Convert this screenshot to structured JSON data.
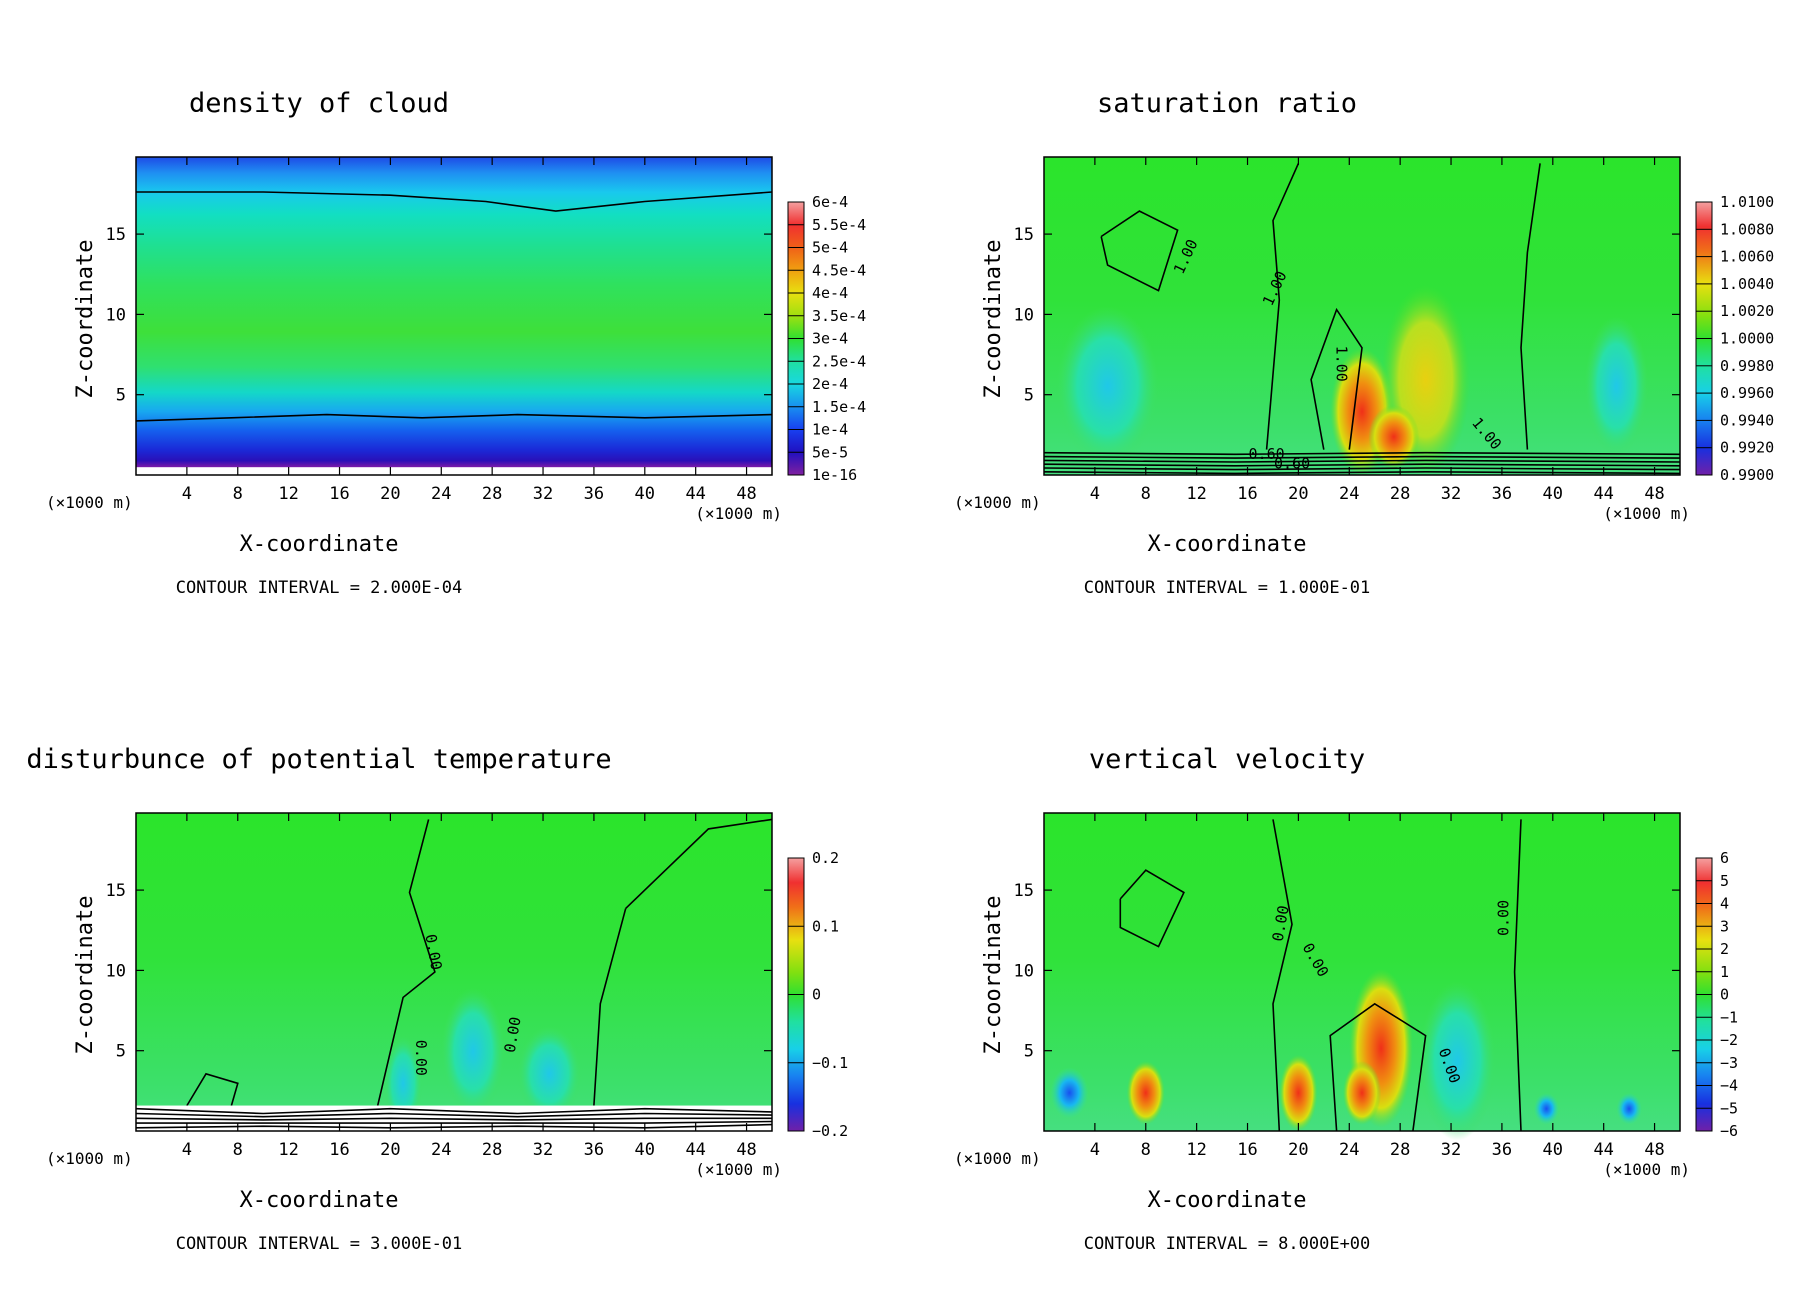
{
  "page": {
    "background": "#ffffff"
  },
  "chart_data": [
    {
      "type": "heatmap",
      "id": "cloud",
      "title": "density of cloud",
      "xlabel": "X-coordinate",
      "ylabel": "Z-coordinate",
      "x_unit": "(×1000 m)",
      "x_ticks": [
        "4",
        "8",
        "12",
        "16",
        "20",
        "24",
        "28",
        "32",
        "36",
        "40",
        "44",
        "48"
      ],
      "y_ticks": [
        "5",
        "10",
        "15"
      ],
      "xlim": [
        0,
        50
      ],
      "ylim": [
        0,
        19.8
      ],
      "colorbar_labels": [
        "6e-4",
        "5.5e-4",
        "5e-4",
        "4.5e-4",
        "4e-4",
        "3.5e-4",
        "3e-4",
        "2.5e-4",
        "2e-4",
        "1.5e-4",
        "1e-4",
        "5e-5",
        "1e-16"
      ],
      "contour_interval": "CONTOUR INTERVAL = 2.000E-04",
      "contour_labels": []
    },
    {
      "type": "heatmap",
      "id": "saturation",
      "title": "saturation ratio",
      "xlabel": "X-coordinate",
      "ylabel": "Z-coordinate",
      "x_unit": "(×1000 m)",
      "x_ticks": [
        "4",
        "8",
        "12",
        "16",
        "20",
        "24",
        "28",
        "32",
        "36",
        "40",
        "44",
        "48"
      ],
      "y_ticks": [
        "5",
        "10",
        "15"
      ],
      "xlim": [
        0,
        50
      ],
      "ylim": [
        0,
        19.8
      ],
      "colorbar_labels": [
        "1.0100",
        "1.0080",
        "1.0060",
        "1.0040",
        "1.0020",
        "1.0000",
        "0.9980",
        "0.9960",
        "0.9940",
        "0.9920",
        "0.9900"
      ],
      "contour_interval": "CONTOUR INTERVAL = 1.000E-01",
      "contour_labels": [
        "1.00",
        "1.00",
        "1.00",
        "1.00",
        "0.60",
        "0.60"
      ]
    },
    {
      "type": "heatmap",
      "id": "theta",
      "title": "disturbunce of potential temperature",
      "xlabel": "X-coordinate",
      "ylabel": "Z-coordinate",
      "x_unit": "(×1000 m)",
      "x_ticks": [
        "4",
        "8",
        "12",
        "16",
        "20",
        "24",
        "28",
        "32",
        "36",
        "40",
        "44",
        "48"
      ],
      "y_ticks": [
        "5",
        "10",
        "15"
      ],
      "xlim": [
        0,
        50
      ],
      "ylim": [
        0,
        19.8
      ],
      "colorbar_labels": [
        "0.2",
        "0.1",
        "0",
        "−0.1",
        "−0.2"
      ],
      "contour_interval": "CONTOUR INTERVAL = 3.000E-01",
      "contour_labels": [
        "0.00",
        "0.00",
        "0.00"
      ]
    },
    {
      "type": "heatmap",
      "id": "velocity",
      "title": "vertical velocity",
      "xlabel": "X-coordinate",
      "ylabel": "Z-coordinate",
      "x_unit": "(×1000 m)",
      "x_ticks": [
        "4",
        "8",
        "12",
        "16",
        "20",
        "24",
        "28",
        "32",
        "36",
        "40",
        "44",
        "48"
      ],
      "y_ticks": [
        "5",
        "10",
        "15"
      ],
      "xlim": [
        0,
        50
      ],
      "ylim": [
        0,
        19.8
      ],
      "colorbar_labels": [
        "6",
        "5",
        "4",
        "3",
        "2",
        "1",
        "0",
        "−1",
        "−2",
        "−3",
        "−4",
        "−5",
        "−6"
      ],
      "contour_interval": "CONTOUR INTERVAL = 8.000E+00",
      "contour_labels": [
        "0.00",
        "0.00",
        "0.00",
        "0.00"
      ]
    }
  ]
}
